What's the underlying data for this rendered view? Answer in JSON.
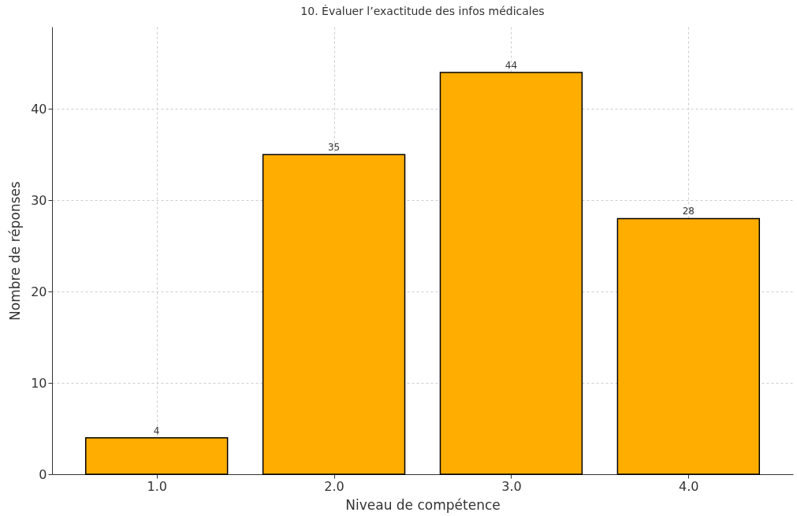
{
  "chart_data": {
    "type": "bar",
    "title": "10. Évaluer l’exactitude des infos médicales",
    "xlabel": "Niveau de compétence",
    "ylabel": "Nombre de réponses",
    "x": [
      1,
      2,
      3,
      4
    ],
    "values": [
      4,
      35,
      44,
      28
    ],
    "color": "#ffae00",
    "xlim": [
      0.41,
      4.59
    ],
    "xticks": [
      {
        "value": 1,
        "label": "1.0"
      },
      {
        "value": 2,
        "label": "2.0"
      },
      {
        "value": 3,
        "label": "3.0"
      },
      {
        "value": 4,
        "label": "4.0"
      }
    ],
    "ylim": [
      0,
      49
    ],
    "yticks": [
      0,
      10,
      20,
      30,
      40
    ],
    "grid": true,
    "data_labels": true
  }
}
